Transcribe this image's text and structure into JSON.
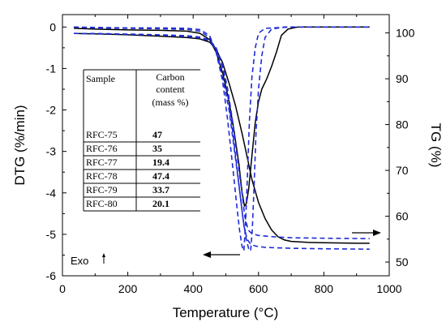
{
  "chart_data": {
    "type": "line",
    "xlabel": "Temperature (°C)",
    "ylabel_left": "DTG (%/min)",
    "ylabel_right": "TG (%)",
    "xlim": [
      0,
      1000
    ],
    "ylim_left": [
      -6,
      0.3
    ],
    "ylim_right": [
      47,
      104
    ],
    "x_ticks": [
      0,
      200,
      400,
      600,
      800,
      1000
    ],
    "y_ticks_left": [
      0,
      -1,
      -2,
      -3,
      -4,
      -5,
      -6
    ],
    "y_ticks_right": [
      100,
      90,
      80,
      70,
      60,
      50
    ],
    "grid": false,
    "annotation_exo": "Exo",
    "series": [
      {
        "axis": "left",
        "kind": "DTG",
        "color": "#000000",
        "style": "solid",
        "points": [
          [
            35,
            -0.03
          ],
          [
            100,
            -0.05
          ],
          [
            200,
            -0.07
          ],
          [
            300,
            -0.08
          ],
          [
            380,
            -0.1
          ],
          [
            420,
            -0.15
          ],
          [
            450,
            -0.3
          ],
          [
            470,
            -0.6
          ],
          [
            490,
            -1.1
          ],
          [
            510,
            -1.8
          ],
          [
            525,
            -2.5
          ],
          [
            540,
            -3.3
          ],
          [
            550,
            -4.0
          ],
          [
            557,
            -4.32
          ],
          [
            563,
            -4.25
          ],
          [
            570,
            -3.9
          ],
          [
            580,
            -3.1
          ],
          [
            590,
            -2.3
          ],
          [
            600,
            -1.8
          ],
          [
            610,
            -1.5
          ],
          [
            625,
            -1.25
          ],
          [
            640,
            -0.95
          ],
          [
            655,
            -0.6
          ],
          [
            670,
            -0.2
          ],
          [
            690,
            -0.05
          ],
          [
            720,
            0.0
          ],
          [
            800,
            0.0
          ],
          [
            900,
            0.0
          ],
          [
            940,
            0.0
          ]
        ]
      },
      {
        "axis": "right",
        "kind": "TG",
        "color": "#000000",
        "style": "solid",
        "points": [
          [
            35,
            99.9
          ],
          [
            100,
            99.8
          ],
          [
            200,
            99.6
          ],
          [
            300,
            99.3
          ],
          [
            380,
            99.0
          ],
          [
            420,
            98.7
          ],
          [
            450,
            98.0
          ],
          [
            470,
            96.5
          ],
          [
            490,
            93.5
          ],
          [
            510,
            89.0
          ],
          [
            530,
            84.0
          ],
          [
            550,
            78.0
          ],
          [
            565,
            73.0
          ],
          [
            580,
            68.0
          ],
          [
            600,
            63.0
          ],
          [
            620,
            59.5
          ],
          [
            640,
            57.0
          ],
          [
            660,
            55.5
          ],
          [
            680,
            54.8
          ],
          [
            700,
            54.5
          ],
          [
            750,
            54.3
          ],
          [
            800,
            54.2
          ],
          [
            900,
            54.1
          ],
          [
            940,
            54.1
          ]
        ]
      },
      {
        "axis": "left",
        "kind": "DTG",
        "color": "#1f2bd6",
        "style": "dashed",
        "points": [
          [
            35,
            0.0
          ],
          [
            100,
            -0.02
          ],
          [
            200,
            -0.03
          ],
          [
            300,
            -0.04
          ],
          [
            380,
            -0.06
          ],
          [
            420,
            -0.1
          ],
          [
            450,
            -0.25
          ],
          [
            470,
            -0.55
          ],
          [
            490,
            -1.2
          ],
          [
            510,
            -2.0
          ],
          [
            525,
            -2.9
          ],
          [
            540,
            -3.8
          ],
          [
            552,
            -4.6
          ],
          [
            562,
            -5.1
          ],
          [
            570,
            -5.35
          ],
          [
            576,
            -5.4
          ],
          [
            581,
            -4.9
          ],
          [
            586,
            -3.9
          ],
          [
            592,
            -2.6
          ],
          [
            600,
            -1.5
          ],
          [
            610,
            -0.7
          ],
          [
            620,
            -0.25
          ],
          [
            640,
            -0.05
          ],
          [
            680,
            0.0
          ],
          [
            800,
            0.0
          ],
          [
            940,
            0.0
          ]
        ]
      },
      {
        "axis": "right",
        "kind": "TG",
        "color": "#1f2bd6",
        "style": "dashed",
        "points": [
          [
            35,
            99.9
          ],
          [
            100,
            99.85
          ],
          [
            200,
            99.7
          ],
          [
            300,
            99.5
          ],
          [
            380,
            99.2
          ],
          [
            420,
            98.9
          ],
          [
            450,
            98.3
          ],
          [
            470,
            96.5
          ],
          [
            490,
            92.5
          ],
          [
            505,
            87.0
          ],
          [
            520,
            79.0
          ],
          [
            535,
            70.0
          ],
          [
            545,
            64.0
          ],
          [
            555,
            58.0
          ],
          [
            565,
            55.0
          ],
          [
            575,
            54.0
          ],
          [
            590,
            53.5
          ],
          [
            620,
            53.2
          ],
          [
            700,
            53.0
          ],
          [
            800,
            52.9
          ],
          [
            940,
            52.8
          ]
        ]
      },
      {
        "axis": "left",
        "kind": "DTG",
        "color": "#1f2bd6",
        "style": "dashed",
        "points": [
          [
            35,
            0.0
          ],
          [
            100,
            -0.01
          ],
          [
            200,
            -0.02
          ],
          [
            300,
            -0.02
          ],
          [
            380,
            -0.03
          ],
          [
            420,
            -0.06
          ],
          [
            450,
            -0.2
          ],
          [
            470,
            -0.6
          ],
          [
            490,
            -1.3
          ],
          [
            505,
            -2.2
          ],
          [
            520,
            -3.3
          ],
          [
            532,
            -4.2
          ],
          [
            542,
            -4.9
          ],
          [
            550,
            -5.3
          ],
          [
            555,
            -5.4
          ],
          [
            560,
            -4.8
          ],
          [
            566,
            -3.6
          ],
          [
            572,
            -2.3
          ],
          [
            580,
            -1.2
          ],
          [
            590,
            -0.5
          ],
          [
            600,
            -0.15
          ],
          [
            620,
            -0.03
          ],
          [
            700,
            0.0
          ],
          [
            940,
            0.0
          ]
        ]
      },
      {
        "axis": "right",
        "kind": "TG",
        "color": "#1f2bd6",
        "style": "dashed",
        "points": [
          [
            35,
            99.9
          ],
          [
            100,
            99.85
          ],
          [
            200,
            99.75
          ],
          [
            300,
            99.6
          ],
          [
            380,
            99.4
          ],
          [
            420,
            99.1
          ],
          [
            450,
            98.5
          ],
          [
            470,
            96.8
          ],
          [
            490,
            93.0
          ],
          [
            505,
            88.0
          ],
          [
            520,
            81.0
          ],
          [
            535,
            73.0
          ],
          [
            548,
            66.0
          ],
          [
            558,
            60.0
          ],
          [
            568,
            57.0
          ],
          [
            580,
            56.2
          ],
          [
            600,
            55.8
          ],
          [
            650,
            55.5
          ],
          [
            700,
            55.3
          ],
          [
            800,
            55.2
          ],
          [
            940,
            55.1
          ]
        ]
      }
    ],
    "table": {
      "headers": [
        "Sample",
        "Carbon",
        "content",
        "(mass %)"
      ],
      "rows": [
        {
          "sample": "RFC-75",
          "carbon": "47"
        },
        {
          "sample": "RFC-76",
          "carbon": "35"
        },
        {
          "sample": "RFC-77",
          "carbon": "19.4"
        },
        {
          "sample": "RFC-78",
          "carbon": "47.4"
        },
        {
          "sample": "RFC-79",
          "carbon": "33.7"
        },
        {
          "sample": "RFC-80",
          "carbon": "20.1"
        }
      ]
    }
  }
}
